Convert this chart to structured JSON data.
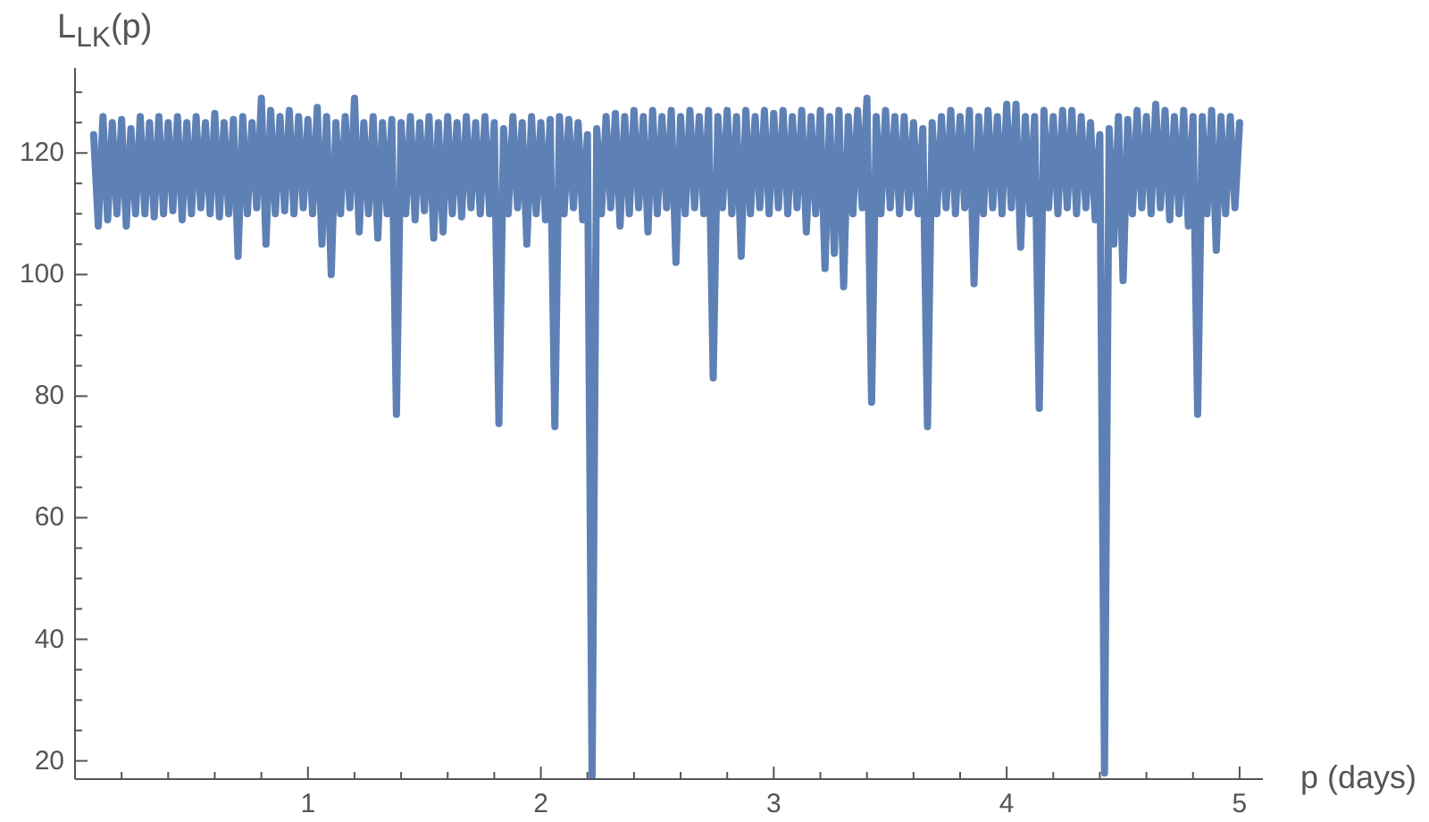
{
  "chart_data": {
    "type": "line",
    "xlabel": "p (days)",
    "ylabel": "L$_{LK}$(p)",
    "x": [
      0.08,
      0.1,
      0.12,
      0.14,
      0.16,
      0.18,
      0.2,
      0.22,
      0.24,
      0.26,
      0.28,
      0.3,
      0.32,
      0.34,
      0.36,
      0.38,
      0.4,
      0.42,
      0.44,
      0.46,
      0.48,
      0.5,
      0.52,
      0.54,
      0.56,
      0.58,
      0.6,
      0.62,
      0.64,
      0.66,
      0.68,
      0.7,
      0.72,
      0.74,
      0.76,
      0.78,
      0.8,
      0.82,
      0.84,
      0.86,
      0.88,
      0.9,
      0.92,
      0.94,
      0.96,
      0.98,
      1,
      1.02,
      1.04,
      1.06,
      1.08,
      1.1,
      1.12,
      1.14,
      1.16,
      1.18,
      1.2,
      1.22,
      1.24,
      1.26,
      1.28,
      1.3,
      1.32,
      1.34,
      1.36,
      1.38,
      1.4,
      1.42,
      1.44,
      1.46,
      1.48,
      1.5,
      1.52,
      1.54,
      1.56,
      1.58,
      1.6,
      1.62,
      1.64,
      1.66,
      1.68,
      1.7,
      1.72,
      1.74,
      1.76,
      1.78,
      1.8,
      1.82,
      1.84,
      1.86,
      1.88,
      1.9,
      1.92,
      1.94,
      1.96,
      1.98,
      2,
      2.02,
      2.04,
      2.06,
      2.08,
      2.1,
      2.12,
      2.14,
      2.16,
      2.18,
      2.2,
      2.22,
      2.24,
      2.26,
      2.28,
      2.3,
      2.32,
      2.34,
      2.36,
      2.38,
      2.4,
      2.42,
      2.44,
      2.46,
      2.48,
      2.5,
      2.52,
      2.54,
      2.56,
      2.58,
      2.6,
      2.62,
      2.64,
      2.66,
      2.68,
      2.7,
      2.72,
      2.74,
      2.76,
      2.78,
      2.8,
      2.82,
      2.84,
      2.86,
      2.88,
      2.9,
      2.92,
      2.94,
      2.96,
      2.98,
      3,
      3.02,
      3.04,
      3.06,
      3.08,
      3.1,
      3.12,
      3.14,
      3.16,
      3.18,
      3.2,
      3.22,
      3.24,
      3.26,
      3.28,
      3.3,
      3.32,
      3.34,
      3.36,
      3.38,
      3.4,
      3.42,
      3.44,
      3.46,
      3.48,
      3.5,
      3.52,
      3.54,
      3.56,
      3.58,
      3.6,
      3.62,
      3.64,
      3.66,
      3.68,
      3.7,
      3.72,
      3.74,
      3.76,
      3.78,
      3.8,
      3.82,
      3.84,
      3.86,
      3.88,
      3.9,
      3.92,
      3.94,
      3.96,
      3.98,
      4,
      4.02,
      4.04,
      4.06,
      4.08,
      4.1,
      4.12,
      4.14,
      4.16,
      4.18,
      4.2,
      4.22,
      4.24,
      4.26,
      4.28,
      4.3,
      4.32,
      4.34,
      4.36,
      4.38,
      4.4,
      4.42,
      4.44,
      4.46,
      4.48,
      4.5,
      4.52,
      4.54,
      4.56,
      4.58,
      4.6,
      4.62,
      4.64,
      4.66,
      4.68,
      4.7,
      4.72,
      4.74,
      4.76,
      4.78,
      4.8,
      4.82,
      4.84,
      4.86,
      4.88,
      4.9,
      4.92,
      4.94,
      4.96,
      4.98,
      5
    ],
    "series": [
      {
        "color": "#5e81b5",
        "values": [
          123,
          108,
          126,
          109,
          125,
          110,
          125.5,
          108,
          124,
          110,
          126,
          110,
          125,
          109.5,
          126,
          110,
          125,
          110.5,
          126,
          109,
          125,
          110,
          126,
          111,
          125,
          110,
          126.5,
          109.5,
          125,
          110,
          125.5,
          103,
          126,
          110,
          125,
          111,
          129,
          105,
          127,
          110,
          126,
          110.5,
          127,
          110,
          126,
          111,
          125.5,
          110,
          127.5,
          105,
          126,
          100,
          125,
          110,
          126,
          111,
          129,
          107,
          125,
          110,
          126,
          106,
          125,
          110,
          125.5,
          77,
          125,
          110,
          126,
          109,
          125,
          110.5,
          126,
          106,
          125,
          107,
          126,
          110,
          125,
          109.5,
          126,
          111,
          125,
          110,
          126,
          110,
          125,
          75.5,
          124,
          110,
          126,
          111,
          125,
          105,
          126,
          110,
          125,
          109,
          125.5,
          75,
          126,
          110,
          125.5,
          111,
          125,
          109,
          123,
          17.5,
          124,
          110,
          126,
          111,
          126.5,
          108,
          126,
          110,
          127,
          111,
          126,
          107,
          127,
          110,
          126,
          111,
          127,
          102,
          126,
          110,
          127,
          111,
          126,
          110,
          127,
          83,
          126,
          111,
          127,
          110,
          126,
          103,
          127,
          110,
          126,
          111,
          127,
          110,
          126.5,
          111,
          127,
          110,
          126,
          111,
          127,
          107,
          126,
          110,
          127,
          101,
          126,
          103.5,
          127,
          98,
          126,
          110,
          127,
          111,
          129,
          79,
          126,
          110,
          127,
          111,
          126,
          110,
          126,
          111,
          125,
          110,
          124,
          75,
          125,
          110,
          126,
          111,
          127,
          110,
          126,
          111,
          127,
          98.5,
          126,
          110,
          127,
          111,
          126,
          110,
          128,
          111,
          128,
          104.5,
          126,
          110,
          126,
          78,
          127,
          111,
          126,
          110,
          127,
          111,
          127,
          110,
          126,
          111,
          125,
          109,
          123,
          18,
          124,
          105,
          126,
          99,
          125.5,
          110,
          127,
          111,
          126,
          110,
          128,
          111,
          127,
          109,
          126,
          110,
          127,
          108,
          126,
          77,
          126,
          110,
          127,
          104,
          126,
          110,
          126,
          111,
          125
        ]
      }
    ],
    "xlim": [
      0,
      5.1
    ],
    "ylim": [
      17,
      134
    ],
    "xticks": [
      {
        "value": 0.2,
        "label": null
      },
      {
        "value": 0.4,
        "label": null
      },
      {
        "value": 0.6,
        "label": null
      },
      {
        "value": 0.8,
        "label": null
      },
      1,
      {
        "value": 1.2,
        "label": null
      },
      {
        "value": 1.4,
        "label": null
      },
      {
        "value": 1.6,
        "label": null
      },
      {
        "value": 1.8,
        "label": null
      },
      2,
      {
        "value": 2.2,
        "label": null
      },
      {
        "value": 2.4,
        "label": null
      },
      {
        "value": 2.6,
        "label": null
      },
      {
        "value": 2.8,
        "label": null
      },
      3,
      {
        "value": 3.2,
        "label": null
      },
      {
        "value": 3.4,
        "label": null
      },
      {
        "value": 3.6,
        "label": null
      },
      {
        "value": 3.8,
        "label": null
      },
      4,
      {
        "value": 4.2,
        "label": null
      },
      {
        "value": 4.4,
        "label": null
      },
      {
        "value": 4.6,
        "label": null
      },
      {
        "value": 4.8,
        "label": null
      },
      5
    ],
    "yticks": [
      20,
      {
        "value": 25,
        "label": null
      },
      {
        "value": 30,
        "label": null
      },
      {
        "value": 35,
        "label": null
      },
      40,
      {
        "value": 45,
        "label": null
      },
      {
        "value": 50,
        "label": null
      },
      {
        "value": 55,
        "label": null
      },
      60,
      {
        "value": 65,
        "label": null
      },
      {
        "value": 70,
        "label": null
      },
      {
        "value": 75,
        "label": null
      },
      80,
      {
        "value": 85,
        "label": null
      },
      {
        "value": 90,
        "label": null
      },
      {
        "value": 95,
        "label": null
      },
      100,
      {
        "value": 105,
        "label": null
      },
      {
        "value": 110,
        "label": null
      },
      {
        "value": 115,
        "label": null
      },
      120,
      {
        "value": 125,
        "label": null
      },
      {
        "value": 130,
        "label": null
      }
    ],
    "marker": "none",
    "line_style": "solid"
  }
}
